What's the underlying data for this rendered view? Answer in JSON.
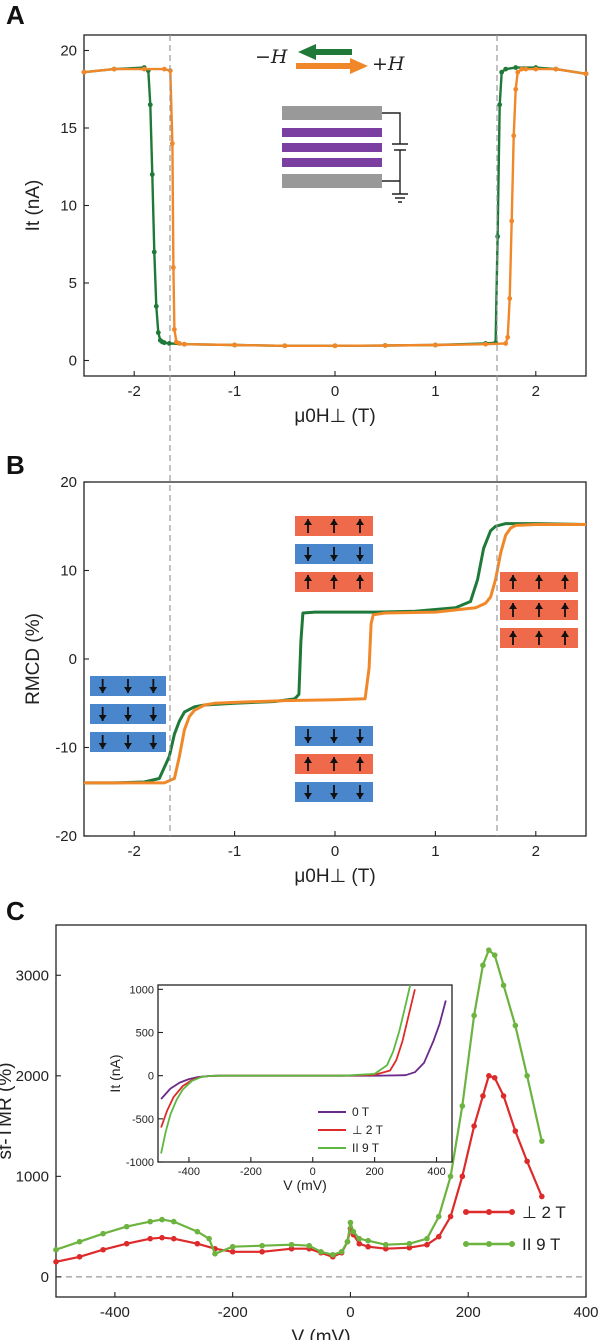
{
  "chart_data": [
    {
      "panel": "A",
      "type": "line",
      "xlabel": "μ0H⊥ (T)",
      "ylabel": "It (nA)",
      "xlim": [
        -2.5,
        2.5
      ],
      "ylim": [
        -1,
        21
      ],
      "xticks": [
        "-2",
        "-1",
        "0",
        "1",
        "2"
      ],
      "yticks": [
        "0",
        "5",
        "10",
        "15",
        "20"
      ],
      "legend": {
        "minus_label": "−H",
        "plus_label": "+H"
      },
      "dashed_lines_x": [
        -1.62,
        1.62
      ],
      "series": [
        {
          "name": "−H",
          "color": "#1f7a3a",
          "x": [
            -2.5,
            -2.2,
            -1.9,
            -1.86,
            -1.84,
            -1.82,
            -1.8,
            -1.78,
            -1.76,
            -1.74,
            -1.72,
            -1.7,
            -1.65,
            -1.5,
            -1.0,
            -0.5,
            0.0,
            0.5,
            1.0,
            1.5,
            1.6,
            1.62,
            1.64,
            1.66,
            1.7,
            1.8,
            2.0,
            2.2,
            2.5
          ],
          "y": [
            18.6,
            18.8,
            18.9,
            18.7,
            16.5,
            12.0,
            7.0,
            3.5,
            1.8,
            1.3,
            1.2,
            1.15,
            1.1,
            1.05,
            1.0,
            0.95,
            0.95,
            0.97,
            1.0,
            1.1,
            1.15,
            8.0,
            16.5,
            18.6,
            18.8,
            18.9,
            18.9,
            18.8,
            18.5
          ]
        },
        {
          "name": "+H",
          "color": "#f0882a",
          "x": [
            -2.5,
            -2.2,
            -1.9,
            -1.7,
            -1.64,
            -1.62,
            -1.61,
            -1.6,
            -1.58,
            -1.55,
            -1.5,
            -1.0,
            -0.5,
            0.0,
            0.5,
            1.0,
            1.5,
            1.7,
            1.72,
            1.74,
            1.76,
            1.78,
            1.8,
            1.82,
            1.86,
            1.9,
            2.0,
            2.2,
            2.5
          ],
          "y": [
            18.6,
            18.8,
            18.8,
            18.8,
            18.7,
            14.0,
            6.0,
            2.0,
            1.2,
            1.1,
            1.05,
            1.0,
            0.95,
            0.95,
            0.97,
            1.0,
            1.05,
            1.1,
            1.5,
            4.0,
            9.0,
            14.5,
            17.5,
            18.6,
            18.8,
            18.8,
            18.8,
            18.8,
            18.5
          ]
        }
      ]
    },
    {
      "panel": "B",
      "type": "line",
      "xlabel": "μ0H⊥ (T)",
      "ylabel": "RMCD (%)",
      "xlim": [
        -2.5,
        2.5
      ],
      "ylim": [
        -20,
        20
      ],
      "xticks": [
        "-2",
        "-1",
        "0",
        "1",
        "2"
      ],
      "yticks": [
        "-20",
        "-10",
        "0",
        "10",
        "20"
      ],
      "dashed_lines_x": [
        -1.62,
        1.62
      ],
      "series": [
        {
          "name": "−H",
          "color": "#1f7a3a",
          "x": [
            -2.5,
            -2.2,
            -1.9,
            -1.75,
            -1.65,
            -1.6,
            -1.55,
            -1.5,
            -1.4,
            -1.3,
            -1.0,
            -0.6,
            -0.4,
            -0.36,
            -0.34,
            -0.32,
            -0.2,
            0.0,
            0.4,
            0.8,
            1.2,
            1.35,
            1.42,
            1.48,
            1.55,
            1.6,
            1.7,
            2.0,
            2.5
          ],
          "y": [
            -14.0,
            -14.0,
            -13.9,
            -13.5,
            -11.0,
            -8.5,
            -7.0,
            -6.0,
            -5.4,
            -5.2,
            -5.0,
            -4.8,
            -4.5,
            -4.0,
            2.0,
            5.2,
            5.3,
            5.3,
            5.3,
            5.4,
            5.8,
            6.5,
            9.0,
            12.5,
            14.5,
            15.0,
            15.3,
            15.3,
            15.2
          ]
        },
        {
          "name": "+H",
          "color": "#f0882a",
          "x": [
            -2.5,
            -2.0,
            -1.7,
            -1.6,
            -1.55,
            -1.5,
            -1.45,
            -1.4,
            -1.3,
            -1.2,
            -1.0,
            -0.5,
            0.0,
            0.3,
            0.34,
            0.36,
            0.38,
            0.5,
            1.0,
            1.4,
            1.5,
            1.55,
            1.6,
            1.65,
            1.7,
            1.75,
            1.8,
            2.0,
            2.5
          ],
          "y": [
            -14.0,
            -14.0,
            -14.0,
            -13.5,
            -11.0,
            -8.0,
            -6.5,
            -5.8,
            -5.2,
            -5.0,
            -4.9,
            -4.7,
            -4.6,
            -4.5,
            -1.0,
            4.0,
            5.0,
            5.2,
            5.3,
            5.8,
            6.3,
            7.0,
            9.0,
            12.0,
            14.0,
            14.8,
            15.1,
            15.2,
            15.2
          ]
        }
      ]
    },
    {
      "panel": "C",
      "type": "line",
      "xlabel": "V (mV)",
      "ylabel": "sf-TMR (%)",
      "xlim": [
        -500,
        400
      ],
      "ylim": [
        -200,
        3500
      ],
      "xticks": [
        "-400",
        "-200",
        "0",
        "200",
        "400"
      ],
      "yticks": [
        "0",
        "1000",
        "2000",
        "3000"
      ],
      "dashed_lines_y": [
        0
      ],
      "series": [
        {
          "name": "⊥ 2 T",
          "color": "#dd2b2b",
          "x": [
            -500,
            -460,
            -420,
            -380,
            -340,
            -320,
            -300,
            -260,
            -230,
            -200,
            -150,
            -100,
            -70,
            -50,
            -30,
            -15,
            -5,
            0,
            5,
            15,
            30,
            60,
            100,
            130,
            150,
            170,
            190,
            210,
            225,
            235,
            245,
            260,
            280,
            300,
            325
          ],
          "y": [
            150,
            200,
            270,
            330,
            380,
            390,
            380,
            330,
            280,
            250,
            250,
            280,
            280,
            240,
            200,
            240,
            350,
            480,
            420,
            330,
            300,
            280,
            290,
            320,
            400,
            600,
            1000,
            1500,
            1800,
            2000,
            1980,
            1800,
            1450,
            1150,
            800
          ]
        },
        {
          "name": "II 9 T",
          "color": "#6cb33f",
          "x": [
            -500,
            -460,
            -420,
            -380,
            -340,
            -320,
            -300,
            -260,
            -240,
            -230,
            -200,
            -150,
            -100,
            -70,
            -50,
            -30,
            -15,
            -5,
            0,
            5,
            15,
            30,
            60,
            100,
            130,
            150,
            170,
            190,
            210,
            225,
            235,
            245,
            260,
            280,
            300,
            325
          ],
          "y": [
            270,
            350,
            430,
            500,
            550,
            570,
            550,
            450,
            380,
            230,
            300,
            310,
            320,
            310,
            250,
            220,
            250,
            350,
            540,
            450,
            380,
            360,
            320,
            330,
            380,
            600,
            1000,
            1700,
            2600,
            3100,
            3250,
            3200,
            2900,
            2500,
            2000,
            1350
          ]
        }
      ]
    },
    {
      "panel": "C-inset",
      "type": "line",
      "xlabel": "V (mV)",
      "ylabel": "It (nA)",
      "xlim": [
        -500,
        450
      ],
      "ylim": [
        -1000,
        1050
      ],
      "xticks": [
        "-400",
        "-200",
        "0",
        "200",
        "400"
      ],
      "yticks": [
        "-1000",
        "-500",
        "0",
        "500",
        "1000"
      ],
      "series": [
        {
          "name": "0 T",
          "color": "#6a2a8a",
          "x": [
            -490,
            -460,
            -430,
            -400,
            -370,
            -340,
            -300,
            -200,
            -100,
            0,
            100,
            200,
            300,
            330,
            360,
            390,
            410,
            430
          ],
          "y": [
            -270,
            -150,
            -80,
            -40,
            -15,
            -5,
            0,
            0,
            0,
            0,
            0,
            0,
            5,
            40,
            150,
            400,
            600,
            870
          ]
        },
        {
          "name": "⊥ 2 T",
          "color": "#dd2b2b",
          "x": [
            -490,
            -470,
            -450,
            -420,
            -390,
            -360,
            -330,
            -300,
            -200,
            -100,
            0,
            100,
            200,
            250,
            270,
            290,
            310,
            330
          ],
          "y": [
            -600,
            -400,
            -250,
            -120,
            -50,
            -15,
            -3,
            0,
            0,
            0,
            0,
            0,
            10,
            60,
            180,
            400,
            700,
            1000
          ]
        },
        {
          "name": "II 9 T",
          "color": "#5cb840",
          "x": [
            -490,
            -475,
            -460,
            -440,
            -420,
            -390,
            -360,
            -330,
            -300,
            -200,
            -100,
            0,
            100,
            200,
            240,
            260,
            280,
            300,
            315
          ],
          "y": [
            -900,
            -650,
            -450,
            -280,
            -160,
            -60,
            -15,
            -3,
            0,
            0,
            0,
            0,
            0,
            20,
            120,
            280,
            520,
            820,
            1050
          ]
        }
      ],
      "legend_labels": [
        "0 T",
        "⊥ 2 T",
        "II 9 T"
      ]
    }
  ]
}
